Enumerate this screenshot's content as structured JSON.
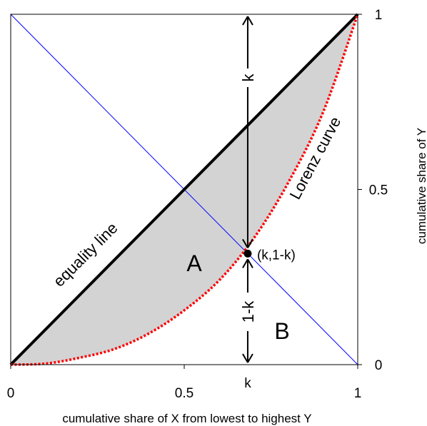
{
  "chart_data": {
    "type": "line",
    "title": "",
    "xlabel": "cumulative share of X from lowest to highest Y",
    "ylabel": "cumulative share of Y",
    "xlim": [
      0,
      1
    ],
    "ylim": [
      0,
      1
    ],
    "x_ticks": [
      {
        "value": 0,
        "label": "0"
      },
      {
        "value": 0.5,
        "label": "0.5"
      },
      {
        "value": 1,
        "label": "1"
      }
    ],
    "y_ticks": [
      {
        "value": 0,
        "label": "0"
      },
      {
        "value": 0.5,
        "label": "0.5"
      },
      {
        "value": 1,
        "label": "1"
      }
    ],
    "y_axis_side": "right",
    "grid": false,
    "series": [
      {
        "name": "equality line",
        "color": "#000000",
        "style": "solid",
        "x": [
          0,
          1
        ],
        "y": [
          0,
          1
        ]
      },
      {
        "name": "Lorenz curve",
        "color": "#ff0000",
        "style": "dotted",
        "x": [
          0,
          0.1,
          0.2,
          0.3,
          0.4,
          0.5,
          0.6,
          0.7,
          0.8,
          0.9,
          1.0
        ],
        "y": [
          0,
          0.003,
          0.02,
          0.045,
          0.09,
          0.155,
          0.24,
          0.36,
          0.52,
          0.72,
          1.0
        ]
      },
      {
        "name": "",
        "color": "#0000ff",
        "style": "solid",
        "x": [
          0,
          1
        ],
        "y": [
          1,
          0
        ]
      }
    ],
    "shaded_area": {
      "between": [
        "equality line",
        "Lorenz curve"
      ],
      "color": "#d3d3d3"
    },
    "point": {
      "x": 0.683,
      "y": 0.317,
      "label": "(k,1-k)"
    },
    "region_labels": [
      "A",
      "B"
    ],
    "k_tick_label": "k",
    "arrow_labels": {
      "upper": "k",
      "lower": "1-k"
    }
  }
}
